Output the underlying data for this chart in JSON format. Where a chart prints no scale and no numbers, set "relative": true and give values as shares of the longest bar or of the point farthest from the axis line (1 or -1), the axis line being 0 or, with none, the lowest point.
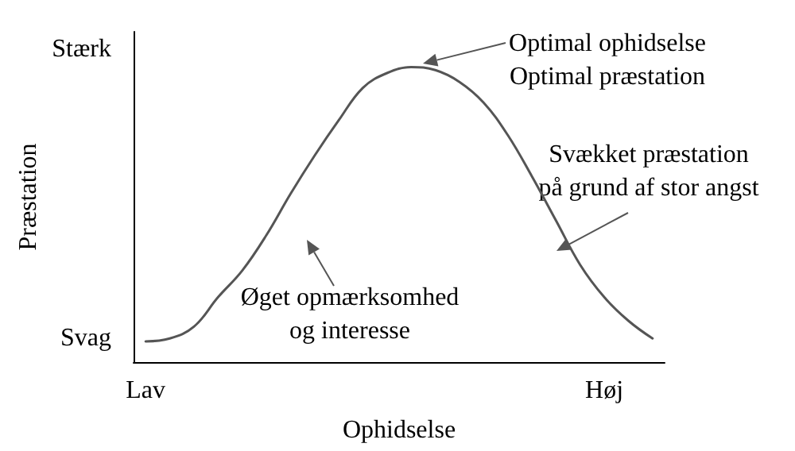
{
  "chart_data": {
    "type": "line",
    "relative": true,
    "xlabel": "Ophidselse",
    "ylabel": "Præstation",
    "color": "#555555",
    "categories": [
      "Lav",
      null,
      null,
      null,
      null,
      null,
      null,
      null,
      null,
      null,
      null,
      null,
      null,
      null,
      null,
      null,
      null,
      null,
      null,
      "Høj",
      null,
      null
    ],
    "values": [
      0.07,
      0.08,
      0.12,
      0.22,
      0.31,
      0.43,
      0.57,
      0.7,
      0.82,
      0.93,
      0.98,
      1.0,
      0.99,
      0.95,
      0.88,
      0.77,
      0.63,
      0.48,
      0.33,
      0.22,
      0.14,
      0.08
    ],
    "grid": false,
    "annotations": [
      "Stærk",
      "Svag",
      "Optimal ophidselse\nOptimal præstation",
      "Svækket præstation\npå grund af stor angst",
      "Øget opmærksomhed\nog interesse"
    ]
  }
}
